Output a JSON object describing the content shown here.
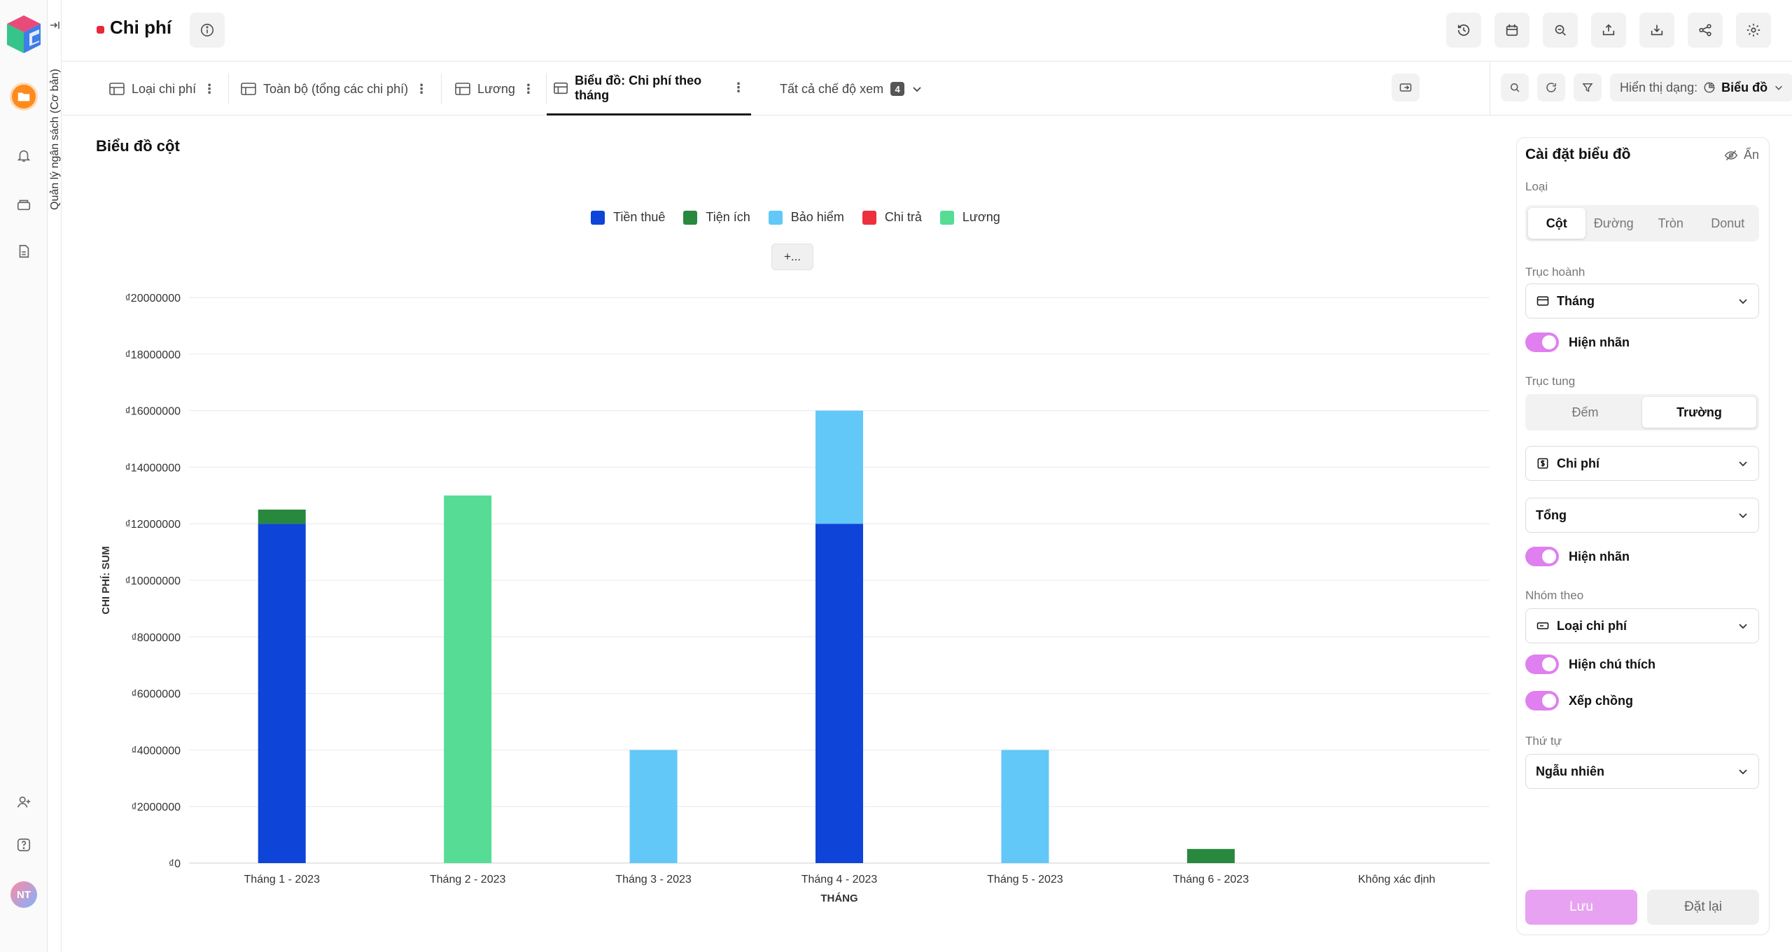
{
  "app": {
    "base_name": "Quản lý ngân sách (Cơ bản)",
    "avatar_initials": "NT"
  },
  "header": {
    "title": "Chi phí",
    "title_dot_color": "#e8283a",
    "right_buttons": [
      "history-icon",
      "calendar-icon",
      "zoom-icon",
      "export-icon",
      "import-icon",
      "share-icon",
      "settings-icon"
    ]
  },
  "tabs": {
    "items": [
      {
        "label": "Loại chi phí",
        "icon": "grid-view-icon"
      },
      {
        "label": "Toàn bộ (tổng các chi phí)",
        "icon": "grid-view-icon"
      },
      {
        "label": "Lương",
        "icon": "grid-view-icon"
      },
      {
        "label": "Biểu đồ: Chi phí theo tháng",
        "icon": "chart-view-icon",
        "active": true
      }
    ],
    "all_views_label": "Tất cả chế độ xem",
    "all_views_count": "4",
    "view_mode_label": "Hiển thị dạng:",
    "view_mode_value": "Biểu đồ"
  },
  "chart_title": "Biểu đồ cột",
  "more_button": "+...",
  "chart_data": {
    "type": "bar",
    "stacked": true,
    "categories": [
      "Tháng 1 - 2023",
      "Tháng 2 - 2023",
      "Tháng 3 - 2023",
      "Tháng 4 - 2023",
      "Tháng 5 - 2023",
      "Tháng 6 -  2023",
      "Không xác định"
    ],
    "series": [
      {
        "name": "Tiền thuê",
        "color": "#0f44d8",
        "values": [
          12000000,
          0,
          0,
          12000000,
          0,
          0,
          0
        ]
      },
      {
        "name": "Tiện ích",
        "color": "#27883e",
        "values": [
          500000,
          0,
          0,
          0,
          0,
          500000,
          0
        ]
      },
      {
        "name": "Bảo hiểm",
        "color": "#62c8f8",
        "values": [
          0,
          0,
          4000000,
          4000000,
          4000000,
          0,
          0
        ]
      },
      {
        "name": "Chi trả",
        "color": "#ee2f3c",
        "values": [
          0,
          0,
          0,
          0,
          0,
          0,
          0
        ]
      },
      {
        "name": "Lương",
        "color": "#56dc95",
        "values": [
          0,
          13000000,
          0,
          0,
          0,
          0,
          0
        ]
      }
    ],
    "xlabel": "THÁNG",
    "ylabel": "CHI PHÍ: SUM",
    "ylim": [
      0,
      20000000
    ],
    "yticks": [
      0,
      2000000,
      4000000,
      6000000,
      8000000,
      10000000,
      12000000,
      14000000,
      16000000,
      18000000,
      20000000
    ],
    "ytick_labels": [
      "₫0",
      "₫2000000",
      "₫4000000",
      "₫6000000",
      "₫8000000",
      "₫10000000",
      "₫12000000",
      "₫14000000",
      "₫16000000",
      "₫18000000",
      "₫20000000"
    ],
    "grid": true,
    "legend": "top-center"
  },
  "settings": {
    "title": "Cài đặt biểu đồ",
    "hide_label": "Ẩn",
    "type_label": "Loại",
    "type_options": [
      "Cột",
      "Đường",
      "Tròn",
      "Donut"
    ],
    "type_selected": "Cột",
    "x_axis_label": "Trục hoành",
    "x_axis_value": "Tháng",
    "show_label_1": "Hiện nhãn",
    "y_axis_label": "Trục tung",
    "y_axis_options": [
      "Đếm",
      "Trường"
    ],
    "y_axis_selected": "Trường",
    "y_field_value": "Chi phí",
    "aggregate_value": "Tổng",
    "show_label_2": "Hiện nhãn",
    "group_label": "Nhóm theo",
    "group_value": "Loại chi phí",
    "show_legend_label": "Hiện chú thích",
    "stack_label": "Xếp chồng",
    "order_label": "Thứ tự",
    "order_value": "Ngẫu nhiên",
    "save_label": "Lưu",
    "reset_label": "Đặt lại",
    "toggle_color": "#e07ff0"
  }
}
